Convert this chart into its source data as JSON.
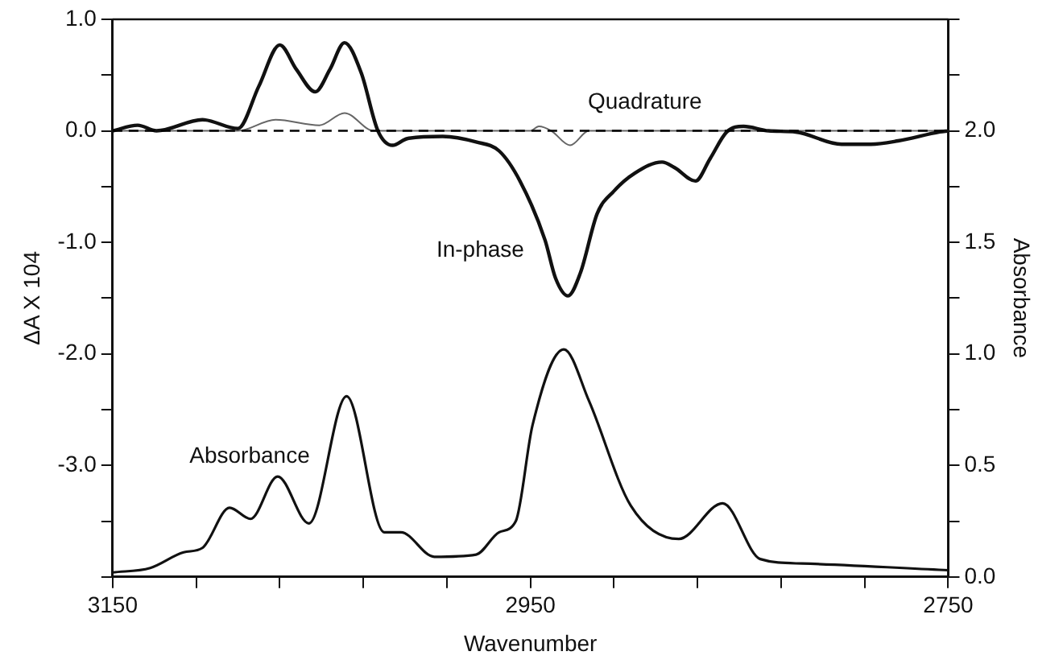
{
  "chart_data": {
    "type": "line",
    "xlabel": "Wavenumber",
    "ylabel": "ΔA X 104",
    "y2label": "Absorbance",
    "legend": false,
    "grid": false,
    "xlim": [
      3150,
      2750
    ],
    "xticks": [
      3150,
      {
        "value": 3110,
        "label": null
      },
      {
        "value": 3070,
        "label": null
      },
      {
        "value": 3030,
        "label": null
      },
      {
        "value": 2990,
        "label": null
      },
      2950,
      {
        "value": 2910,
        "label": null
      },
      {
        "value": 2870,
        "label": null
      },
      {
        "value": 2830,
        "label": null
      },
      {
        "value": 2790,
        "label": null
      },
      2750
    ],
    "ylim": [
      -4,
      1
    ],
    "yticks": [
      {
        "value": 1,
        "label": "1.0"
      },
      {
        "value": 0.5,
        "label": null
      },
      {
        "value": 0,
        "label": "0.0"
      },
      {
        "value": -0.5,
        "label": null
      },
      {
        "value": -1,
        "label": "-1.0"
      },
      {
        "value": -1.5,
        "label": null
      },
      {
        "value": -2,
        "label": "-2.0"
      },
      {
        "value": -2.5,
        "label": null
      },
      {
        "value": -3,
        "label": "-3.0"
      },
      {
        "value": -3.5,
        "label": null
      },
      {
        "value": -4,
        "label": null
      }
    ],
    "y2lim": [
      0,
      2.5
    ],
    "y2ticks": [
      {
        "value": 0,
        "label": "0.0"
      },
      {
        "value": 0.25,
        "label": null
      },
      {
        "value": 0.5,
        "label": "0.5"
      },
      {
        "value": 0.75,
        "label": null
      },
      {
        "value": 1,
        "label": "1.0"
      },
      {
        "value": 1.25,
        "label": null
      },
      {
        "value": 1.5,
        "label": "1.5"
      },
      {
        "value": 1.75,
        "label": null
      },
      {
        "value": 2,
        "label": "2.0"
      },
      {
        "value": 2.25,
        "label": null
      },
      {
        "value": 2.5,
        "label": null
      }
    ],
    "ref_lines": [
      {
        "axis": "y",
        "value": 0,
        "line_style": "dashed",
        "color": "#000000"
      }
    ],
    "series": [
      {
        "name": "In-phase",
        "color": "#111111",
        "x": [
          3150,
          3138,
          3129,
          3107,
          3090,
          3080,
          3070,
          3062,
          3053,
          3046,
          3039,
          3031,
          3023,
          3016,
          3009,
          2992,
          2976,
          2965,
          2955,
          2943,
          2938,
          2932,
          2926,
          2918,
          2910,
          2900,
          2887,
          2881,
          2871,
          2864,
          2856,
          2848,
          2836,
          2823,
          2801,
          2787,
          2774,
          2754,
          2750
        ],
        "values": [
          0,
          0.05,
          0,
          0.1,
          0.02,
          0.4,
          0.77,
          0.55,
          0.35,
          0.55,
          0.79,
          0.52,
          0,
          -0.13,
          -0.07,
          -0.05,
          -0.1,
          -0.18,
          -0.45,
          -0.98,
          -1.32,
          -1.48,
          -1.27,
          -0.74,
          -0.54,
          -0.38,
          -0.28,
          -0.33,
          -0.45,
          -0.25,
          -0.01,
          0.04,
          0,
          -0.01,
          -0.12,
          -0.12,
          -0.09,
          -0.01,
          0
        ]
      },
      {
        "name": "Quadrature",
        "color": "#666666",
        "x": [
          3150,
          3090,
          3072,
          3051,
          3039,
          3025,
          2950,
          2946,
          2940,
          2931,
          2922,
          2750
        ],
        "values": [
          0,
          0,
          0.1,
          0.05,
          0.16,
          0,
          0,
          0.04,
          0,
          -0.13,
          0,
          0
        ]
      },
      {
        "name": "Absorbance",
        "color": "#111111",
        "axis": "y2",
        "x": [
          3150,
          3132,
          3116,
          3107,
          3094,
          3084,
          3071,
          3056,
          3038,
          3020,
          3012,
          2996,
          2976,
          2965,
          2957,
          2949,
          2934,
          2922,
          2902,
          2879,
          2858,
          2840,
          2820,
          2750
        ],
        "values": [
          0.02,
          0.04,
          0.11,
          0.13,
          0.31,
          0.26,
          0.45,
          0.24,
          0.81,
          0.2,
          0.2,
          0.09,
          0.1,
          0.2,
          0.25,
          0.68,
          1.02,
          0.79,
          0.32,
          0.17,
          0.33,
          0.08,
          0.06,
          0.03
        ]
      }
    ]
  }
}
